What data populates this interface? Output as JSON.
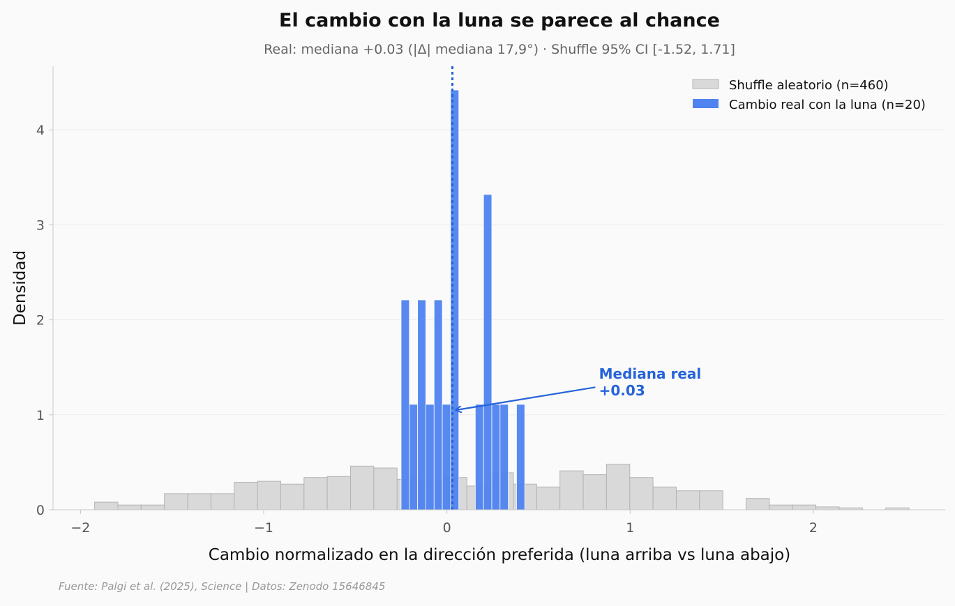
{
  "chart_data": {
    "type": "histogram",
    "title": "El cambio con la luna se parece al chance",
    "subtitle": "Real: mediana +0.03 (|Δ| mediana 17,9°) · Shuffle 95% CI [-1.52, 1.71]",
    "xlabel": "Cambio normalizado en la dirección preferida (luna arriba vs luna abajo)",
    "ylabel": "Densidad",
    "xlim": [
      -2.15,
      2.72
    ],
    "ylim": [
      0,
      4.67
    ],
    "xticks": [
      -2,
      -1,
      0,
      1,
      2
    ],
    "xtick_labels": [
      "−2",
      "−1",
      "0",
      "1",
      "2"
    ],
    "yticks": [
      0,
      1,
      2,
      3,
      4
    ],
    "ytick_labels": [
      "0",
      "1",
      "2",
      "3",
      "4"
    ],
    "grid": "horizontal",
    "legend_position": "top-right",
    "colors": {
      "shuffle_fill": "#d9d9d9",
      "shuffle_edge": "#b4b4b4",
      "real_fill": "#4f83ef",
      "real_dark": "#2563d9",
      "grid": "#ebebeb",
      "axis": "#c8c8c8",
      "tick_text": "#555555",
      "subtitle_text": "#666666",
      "source_text": "#999999"
    },
    "series": [
      {
        "name": "Shuffle aleatorio (n=460)",
        "bin_width": 0.127,
        "bins": [
          {
            "left": -1.923,
            "density": 0.08
          },
          {
            "left": -1.796,
            "density": 0.05
          },
          {
            "left": -1.669,
            "density": 0.05
          },
          {
            "left": -1.542,
            "density": 0.17
          },
          {
            "left": -1.415,
            "density": 0.17
          },
          {
            "left": -1.288,
            "density": 0.17
          },
          {
            "left": -1.161,
            "density": 0.29
          },
          {
            "left": -1.034,
            "density": 0.3
          },
          {
            "left": -0.907,
            "density": 0.27
          },
          {
            "left": -0.78,
            "density": 0.34
          },
          {
            "left": -0.653,
            "density": 0.35
          },
          {
            "left": -0.526,
            "density": 0.46
          },
          {
            "left": -0.399,
            "density": 0.44
          },
          {
            "left": -0.272,
            "density": 0.32
          },
          {
            "left": -0.145,
            "density": 0.31
          },
          {
            "left": -0.018,
            "density": 0.34
          },
          {
            "left": 0.109,
            "density": 0.25
          },
          {
            "left": 0.236,
            "density": 0.39
          },
          {
            "left": 0.363,
            "density": 0.27
          },
          {
            "left": 0.49,
            "density": 0.24
          },
          {
            "left": 0.617,
            "density": 0.41
          },
          {
            "left": 0.744,
            "density": 0.37
          },
          {
            "left": 0.871,
            "density": 0.48
          },
          {
            "left": 0.998,
            "density": 0.34
          },
          {
            "left": 1.125,
            "density": 0.24
          },
          {
            "left": 1.252,
            "density": 0.2
          },
          {
            "left": 1.379,
            "density": 0.2
          },
          {
            "left": 1.633,
            "density": 0.12
          },
          {
            "left": 1.76,
            "density": 0.05
          },
          {
            "left": 1.887,
            "density": 0.05
          },
          {
            "left": 2.014,
            "density": 0.03
          },
          {
            "left": 2.141,
            "density": 0.02
          },
          {
            "left": 2.395,
            "density": 0.02
          }
        ]
      },
      {
        "name": "Cambio real con la luna (n=20)",
        "bin_width": 0.045,
        "bins": [
          {
            "left": -0.25,
            "density": 2.21
          },
          {
            "left": -0.205,
            "density": 1.11
          },
          {
            "left": -0.16,
            "density": 2.21
          },
          {
            "left": -0.115,
            "density": 1.11
          },
          {
            "left": -0.07,
            "density": 2.21
          },
          {
            "left": -0.025,
            "density": 1.11
          },
          {
            "left": 0.02,
            "density": 4.42
          },
          {
            "left": 0.155,
            "density": 1.11
          },
          {
            "left": 0.2,
            "density": 3.32
          },
          {
            "left": 0.245,
            "density": 1.11
          },
          {
            "left": 0.29,
            "density": 1.11
          },
          {
            "left": 0.38,
            "density": 1.11
          }
        ]
      }
    ],
    "median_line": {
      "x": 0.03
    },
    "annotation": {
      "line1": "Mediana real",
      "line2": "+0.03",
      "text_x": 0.83,
      "text_y": 1.38,
      "arrow_tail_x": 0.81,
      "arrow_tail_y": 1.29,
      "arrow_head_x": 0.035,
      "arrow_head_y": 1.05
    },
    "source": "Fuente: Palgi et al. (2025), Science | Datos: Zenodo 15646845"
  }
}
